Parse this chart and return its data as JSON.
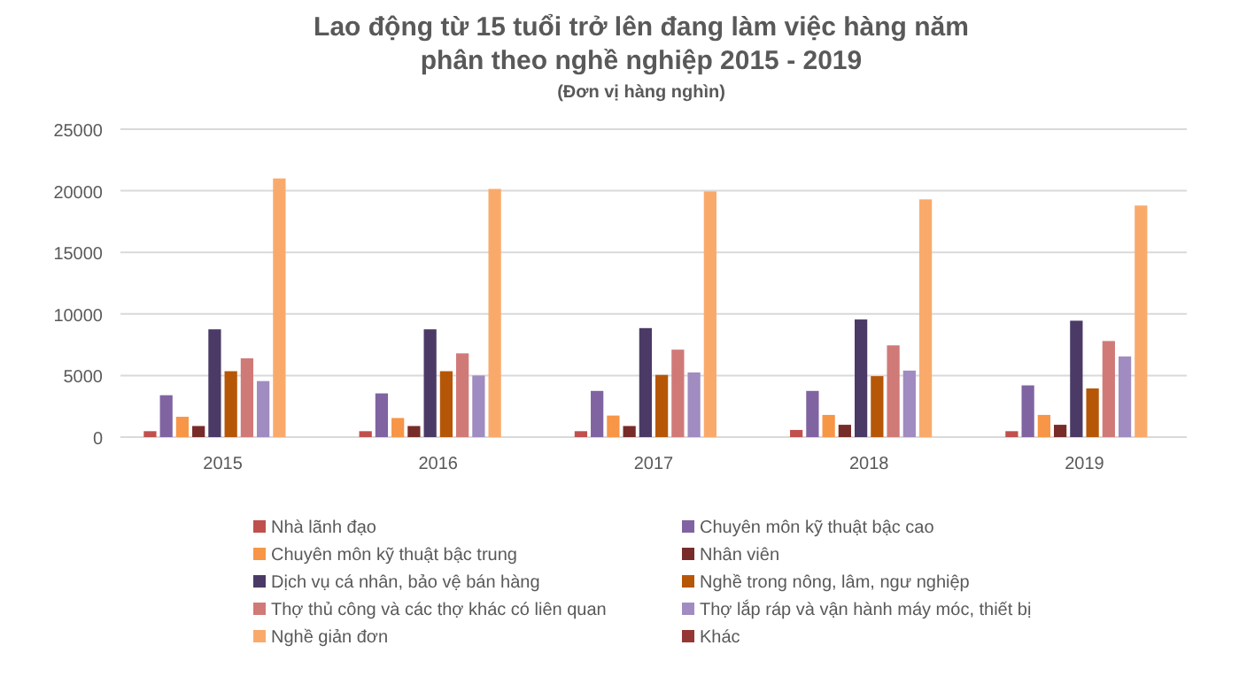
{
  "chart_data": {
    "type": "bar",
    "title": "Lao động từ 15 tuổi trở lên đang làm việc hàng năm\nphân theo nghề nghiệp 2015 - 2019",
    "subtitle": "(Đơn vị hàng nghìn)",
    "categories": [
      "2015",
      "2016",
      "2017",
      "2018",
      "2019"
    ],
    "series": [
      {
        "name": "Nhà lãnh đạo",
        "color": "#c0504d",
        "values": [
          480,
          480,
          480,
          580,
          480
        ]
      },
      {
        "name": "Chuyên môn kỹ thuật bậc cao",
        "color": "#8064a2",
        "values": [
          3400,
          3550,
          3750,
          3750,
          4200
        ]
      },
      {
        "name": "Chuyên môn kỹ thuật bậc trung",
        "color": "#f79646",
        "values": [
          1650,
          1550,
          1750,
          1800,
          1800
        ]
      },
      {
        "name": "Nhân viên",
        "color": "#772c2a",
        "values": [
          900,
          900,
          900,
          1000,
          1000
        ]
      },
      {
        "name": "Dịch vụ cá nhân, bảo vệ bán hàng",
        "color": "#4b3a66",
        "values": [
          8750,
          8750,
          8850,
          9550,
          9450
        ]
      },
      {
        "name": "Nghề trong nông, lâm, ngư nghiệp",
        "color": "#b65708",
        "values": [
          5350,
          5350,
          5050,
          4950,
          3950
        ]
      },
      {
        "name": "Thợ thủ công và các thợ khác có liên quan",
        "color": "#d07a78",
        "values": [
          6400,
          6800,
          7100,
          7450,
          7800
        ]
      },
      {
        "name": "Thợ lắp ráp và vận hành máy móc, thiết bị",
        "color": "#a08cc0",
        "values": [
          4550,
          5000,
          5250,
          5400,
          6550
        ]
      },
      {
        "name": "Nghề giản đơn",
        "color": "#f9aa6b",
        "values": [
          21000,
          20150,
          19950,
          19300,
          18800
        ]
      },
      {
        "name": "Khác",
        "color": "#953735",
        "values": [
          0,
          0,
          0,
          0,
          0
        ]
      }
    ],
    "ylim": [
      0,
      25000
    ],
    "yticks": [
      0,
      5000,
      10000,
      15000,
      20000,
      25000
    ],
    "grid": "y",
    "legend": "bottom"
  }
}
